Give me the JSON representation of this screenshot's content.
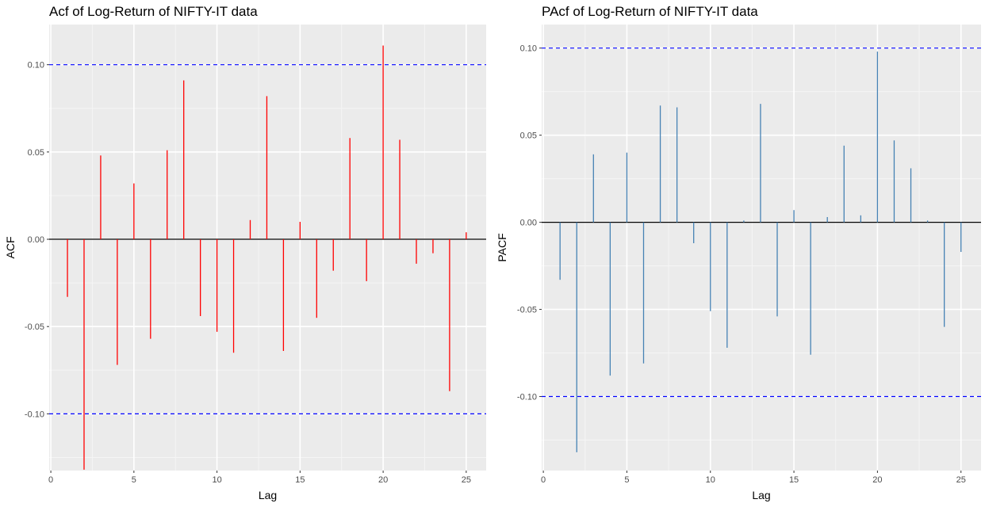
{
  "chart_data": [
    {
      "type": "bar",
      "id": "acf",
      "title": "Acf of  Log-Return of NIFTY-IT data",
      "xlabel": "Lag",
      "ylabel": "ACF",
      "xlim": [
        -0.1,
        26.2
      ],
      "ylim": [
        -0.1325,
        0.123
      ],
      "xticks": [
        0,
        5,
        10,
        15,
        20,
        25
      ],
      "yticks": [
        -0.1,
        -0.05,
        0.0,
        0.05,
        0.1
      ],
      "ytick_labels": [
        "-0.10",
        "-0.05",
        "0.00",
        "0.05",
        "0.10"
      ],
      "x": [
        1,
        2,
        3,
        4,
        5,
        6,
        7,
        8,
        9,
        10,
        11,
        12,
        13,
        14,
        15,
        16,
        17,
        18,
        19,
        20,
        21,
        22,
        23,
        24,
        25
      ],
      "values": [
        -0.033,
        -0.132,
        0.048,
        -0.072,
        0.032,
        -0.057,
        0.051,
        0.091,
        -0.044,
        -0.053,
        -0.065,
        0.011,
        0.082,
        -0.064,
        0.01,
        -0.045,
        -0.018,
        0.058,
        -0.024,
        0.111,
        0.057,
        -0.014,
        -0.008,
        -0.087,
        0.004
      ],
      "bar_color": "#ff0000",
      "confidence_limits": [
        0.1,
        -0.1
      ],
      "confidence_color": "#0000ff",
      "panel_background": "#ebebeb",
      "grid": true
    },
    {
      "type": "bar",
      "id": "pacf",
      "title": "PAcf of  Log-Return of NIFTY-IT data",
      "xlabel": "Lag",
      "ylabel": "PACF",
      "xlim": [
        -0.1,
        26.2
      ],
      "ylim": [
        -0.1425,
        0.1135
      ],
      "xticks": [
        0,
        5,
        10,
        15,
        20,
        25
      ],
      "yticks": [
        -0.1,
        -0.05,
        0.0,
        0.05,
        0.1
      ],
      "ytick_labels": [
        "-0.10",
        "-0.05",
        "0.00",
        "0.05",
        "0.10"
      ],
      "x": [
        1,
        2,
        3,
        4,
        5,
        6,
        7,
        8,
        9,
        10,
        11,
        12,
        13,
        14,
        15,
        16,
        17,
        18,
        19,
        20,
        21,
        22,
        23,
        24,
        25
      ],
      "values": [
        -0.033,
        -0.132,
        0.039,
        -0.088,
        0.04,
        -0.081,
        0.067,
        0.066,
        -0.012,
        -0.051,
        -0.072,
        0.001,
        0.068,
        -0.054,
        0.007,
        -0.076,
        0.003,
        0.044,
        0.004,
        0.098,
        0.047,
        0.031,
        0.001,
        -0.06,
        -0.017
      ],
      "bar_color": "#4682b4",
      "confidence_limits": [
        0.1,
        -0.1
      ],
      "confidence_color": "#0000ff",
      "panel_background": "#ebebeb",
      "grid": true
    }
  ]
}
